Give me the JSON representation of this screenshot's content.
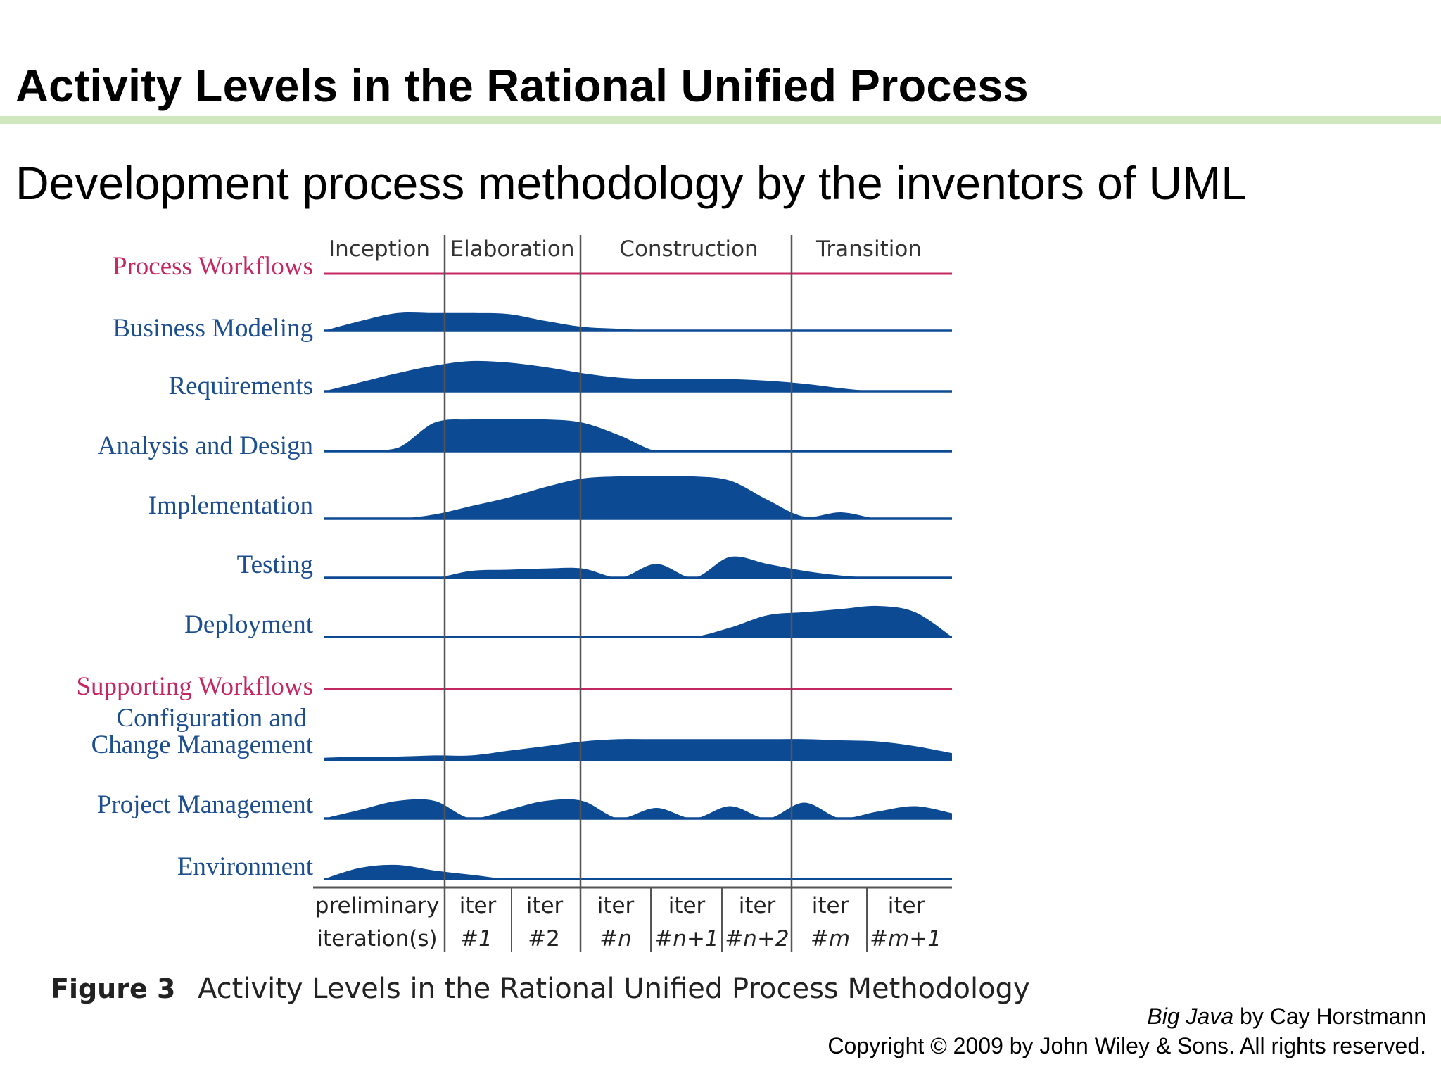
{
  "slide": {
    "title": "Activity Levels in the Rational Unified Process",
    "subtitle": "Development process methodology by the inventors of UML"
  },
  "diagram": {
    "phases": [
      "Inception",
      "Elaboration",
      "Construction",
      "Transition"
    ],
    "process_workflows_heading": "Process Workflows",
    "supporting_workflows_heading": "Supporting Workflows",
    "workflows": [
      {
        "name": "Business Modeling",
        "levels": [
          0.0,
          0.5,
          0.9,
          0.9,
          0.9,
          0.85,
          0.5,
          0.2,
          0.1,
          0.0,
          0.0,
          0.0,
          0.0,
          0.0,
          0.0,
          0.0,
          0.0,
          0.0
        ]
      },
      {
        "name": "Requirements",
        "levels": [
          0.0,
          0.3,
          0.6,
          0.85,
          1.0,
          0.95,
          0.8,
          0.6,
          0.45,
          0.4,
          0.4,
          0.4,
          0.35,
          0.25,
          0.1,
          0.0,
          0.0,
          0.0
        ]
      },
      {
        "name": "Analysis and Design",
        "levels": [
          0.0,
          0.0,
          0.1,
          0.9,
          1.0,
          1.0,
          1.0,
          0.9,
          0.5,
          0.0,
          0.0,
          0.0,
          0.0,
          0.0,
          0.0,
          0.0,
          0.0,
          0.0
        ]
      },
      {
        "name": "Implementation",
        "levels": [
          0.0,
          0.0,
          0.0,
          0.1,
          0.3,
          0.5,
          0.75,
          0.95,
          1.0,
          1.0,
          1.0,
          0.9,
          0.45,
          0.05,
          0.15,
          0.0,
          0.0,
          0.0
        ]
      },
      {
        "name": "Testing",
        "levels": [
          0.0,
          0.0,
          0.0,
          0.0,
          0.3,
          0.35,
          0.4,
          0.4,
          0.0,
          0.6,
          0.0,
          0.9,
          0.6,
          0.3,
          0.1,
          0.0,
          0.0,
          0.0
        ]
      },
      {
        "name": "Deployment",
        "levels": [
          0.0,
          0.0,
          0.0,
          0.0,
          0.0,
          0.0,
          0.0,
          0.0,
          0.0,
          0.0,
          0.0,
          0.3,
          0.7,
          0.8,
          0.9,
          1.0,
          0.8,
          0.0
        ]
      },
      {
        "name": "Configuration and Change Management",
        "levels": [
          0.1,
          0.15,
          0.15,
          0.2,
          0.2,
          0.4,
          0.6,
          0.8,
          0.9,
          0.9,
          0.9,
          0.9,
          0.9,
          0.9,
          0.85,
          0.8,
          0.6,
          0.3
        ]
      },
      {
        "name": "Project Management",
        "levels": [
          0.0,
          0.5,
          1.0,
          1.0,
          0.0,
          0.5,
          1.0,
          1.0,
          0.0,
          0.6,
          0.0,
          0.7,
          0.0,
          0.9,
          0.0,
          0.4,
          0.7,
          0.3
        ]
      },
      {
        "name": "Environment",
        "levels": [
          0.0,
          0.8,
          1.0,
          0.6,
          0.3,
          0.0,
          0.0,
          0.0,
          0.0,
          0.0,
          0.0,
          0.0,
          0.0,
          0.0,
          0.0,
          0.0,
          0.0,
          0.0
        ]
      }
    ],
    "iterations": [
      [
        "preliminary",
        "iteration(s)"
      ],
      [
        "iter",
        "#1"
      ],
      [
        "iter",
        "#2"
      ],
      [
        "iter",
        "#n"
      ],
      [
        "iter",
        "#n+1"
      ],
      [
        "iter",
        "#n+2"
      ],
      [
        "iter",
        "#m"
      ],
      [
        "iter",
        "#m+1"
      ]
    ],
    "figure_label": "Figure 3",
    "figure_caption": "Activity Levels in the Rational Unified Process Methodology",
    "colors": {
      "fill": "#0d4a94",
      "heading": "#c42860",
      "label": "#1d4e8f",
      "divider": "#555555"
    }
  },
  "credit": {
    "book": "Big Java",
    "by": " by Cay Horstmann",
    "copyright": "Copyright © 2009 by John Wiley & Sons.  All rights reserved."
  }
}
